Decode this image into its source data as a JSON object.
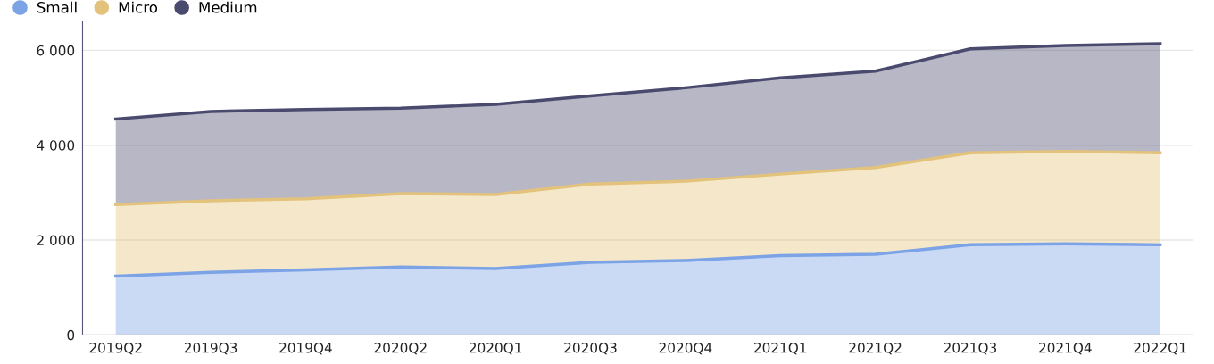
{
  "chart_data": {
    "type": "area",
    "stacked": true,
    "categories": [
      "2019Q2",
      "2019Q3",
      "2019Q4",
      "2020Q2",
      "2020Q1",
      "2020Q3",
      "2020Q4",
      "2021Q1",
      "2021Q2",
      "2021Q3",
      "2021Q4",
      "2022Q1"
    ],
    "series": [
      {
        "name": "Small",
        "color": "#7ba3e6",
        "values": [
          1240,
          1320,
          1370,
          1430,
          1400,
          1530,
          1570,
          1670,
          1700,
          1900,
          1920,
          1900
        ]
      },
      {
        "name": "Micro",
        "color": "#e3c27b",
        "values": [
          1510,
          1510,
          1500,
          1550,
          1560,
          1650,
          1670,
          1720,
          1830,
          1940,
          1950,
          1940
        ]
      },
      {
        "name": "Medium",
        "color": "#4a4a6e",
        "values": [
          1800,
          1880,
          1880,
          1800,
          1900,
          1860,
          1970,
          2030,
          2030,
          2190,
          2230,
          2300
        ]
      }
    ],
    "ylim": [
      0,
      6600
    ],
    "yticks": [
      0,
      {
        "value": 2000,
        "label": "2 000"
      },
      {
        "value": 4000,
        "label": "4 000"
      },
      {
        "value": 6000,
        "label": "6 000"
      }
    ],
    "grid": "y",
    "legend": "top left"
  }
}
